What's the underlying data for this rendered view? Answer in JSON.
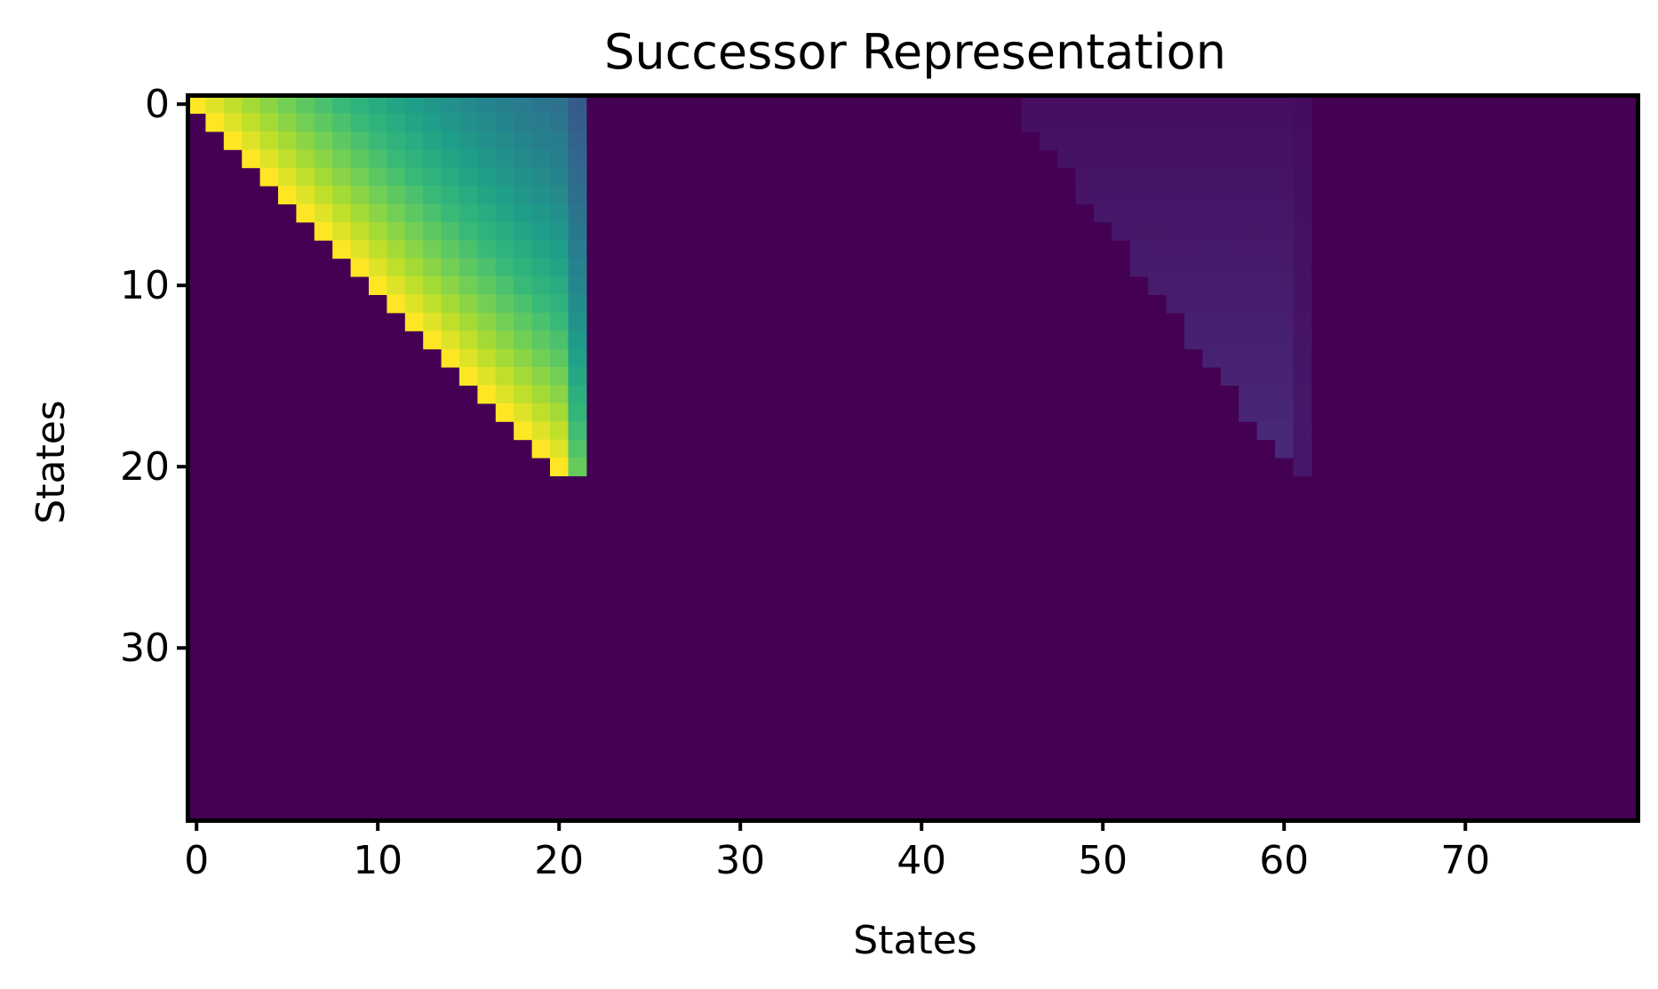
{
  "chart_data": {
    "type": "heatmap",
    "title": "Successor Representation",
    "xlabel": "States",
    "ylabel": "States",
    "n_cols": 80,
    "n_rows": 40,
    "x_ticks": [
      0,
      10,
      20,
      30,
      40,
      50,
      60,
      70
    ],
    "y_ticks": [
      0,
      10,
      20,
      30
    ],
    "y_axis_inverted": true,
    "colormap": "viridis",
    "colormap_stops": [
      "#440154",
      "#482878",
      "#3e4989",
      "#31688e",
      "#26828e",
      "#1f9e89",
      "#35b779",
      "#6ece58",
      "#b5de2b",
      "#fde725"
    ],
    "grid": false,
    "regions": [
      {
        "name": "triangle-bright",
        "rows": [
          0,
          20
        ],
        "cols": [
          0,
          21
        ],
        "pattern": "cell (r,c) nonzero for c >= r; value = 0.98^(c-r) with column 21 extra-discounted",
        "values_note": "diagonal approx 1.0 (yellow) decaying toward approx 0.35 (blue) at column 21 near row 0"
      },
      {
        "name": "triangle-faint",
        "rows": [
          0,
          20
        ],
        "cols": [
          46,
          61
        ],
        "pattern": "faint upper-triangular band, values approx 0.02 to 0.12",
        "values_note": "dark purple shades slightly above background"
      }
    ],
    "background_value": 0.0
  }
}
